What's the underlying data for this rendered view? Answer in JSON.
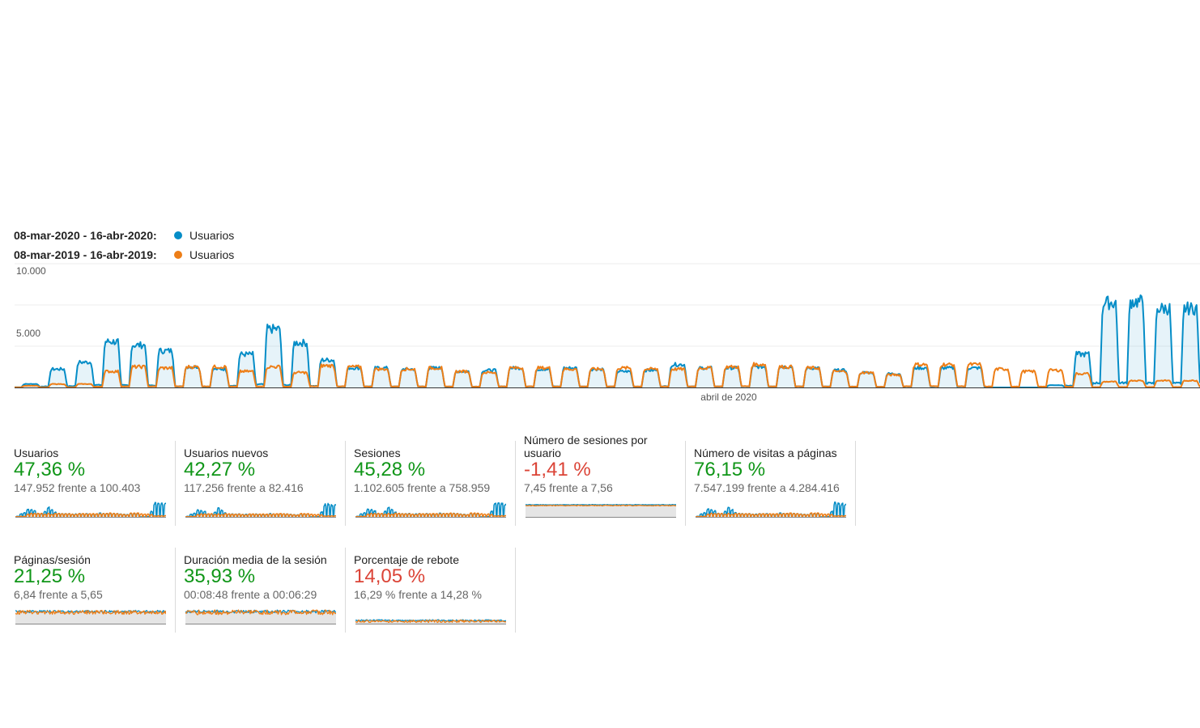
{
  "legend": {
    "rows": [
      {
        "date_range": "08-mar-2020 - 16-abr-2020:",
        "metric": "Usuarios",
        "color": "#058dc7"
      },
      {
        "date_range": "08-mar-2019 - 16-abr-2019:",
        "metric": "Usuarios",
        "color": "#ed7e17"
      }
    ]
  },
  "chart_data": {
    "type": "line",
    "y_ticks": [
      "10.000",
      "5.000"
    ],
    "ylim": [
      0,
      10000
    ],
    "x_tick_label": "abril de 2020",
    "series": [
      {
        "name": "08-mar-2020 - 16-abr-2020: Usuarios",
        "color": "#058dc7"
      },
      {
        "name": "08-mar-2019 - 16-abr-2019: Usuarios",
        "color": "#ed7e17"
      }
    ],
    "daily_peaks_current": [
      300,
      1600,
      2200,
      4000,
      3700,
      3200,
      1800,
      1600,
      2900,
      5100,
      3900,
      2400,
      1700,
      1700,
      1600,
      1700,
      1400,
      1500,
      1700,
      1600,
      1700,
      1600,
      1400,
      1500,
      2000,
      1700,
      1700,
      1800,
      1800,
      1700,
      1500,
      1300,
      1200,
      1700,
      1700,
      1700,
      0,
      0,
      200,
      2900,
      7400,
      7500,
      6900,
      6900
    ],
    "daily_peaks_previous": [
      150,
      300,
      300,
      1400,
      1800,
      1700,
      1800,
      1800,
      1400,
      1800,
      1300,
      1900,
      1800,
      1600,
      1600,
      1700,
      1400,
      1300,
      1700,
      1700,
      1600,
      1600,
      1700,
      1600,
      1600,
      1700,
      1800,
      2000,
      1800,
      1700,
      1400,
      1300,
      1100,
      2000,
      2000,
      2000,
      1600,
      1400,
      1500,
      1200,
      500,
      600,
      600,
      600
    ]
  },
  "metrics": [
    {
      "title": "Usuarios",
      "change": "47,36 %",
      "status": "good",
      "detail": "147.952 frente a 100.403"
    },
    {
      "title": "Usuarios nuevos",
      "change": "42,27 %",
      "status": "good",
      "detail": "117.256 frente a 82.416"
    },
    {
      "title": "Sesiones",
      "change": "45,28 %",
      "status": "good",
      "detail": "1.102.605 frente a 758.959"
    },
    {
      "title": "Número de sesiones por usuario",
      "change": "-1,41 %",
      "status": "bad",
      "detail": "7,45 frente a 7,56"
    },
    {
      "title": "Número de visitas a páginas",
      "change": "76,15 %",
      "status": "good",
      "detail": "7.547.199 frente a 4.284.416"
    },
    {
      "title": "Páginas/sesión",
      "change": "21,25 %",
      "status": "good",
      "detail": "6,84 frente a 5,65"
    },
    {
      "title": "Duración media de la sesión",
      "change": "35,93 %",
      "status": "good",
      "detail": "00:08:48 frente a 00:06:29"
    },
    {
      "title": "Porcentaje de rebote",
      "change": "14,05 %",
      "status": "bad",
      "detail": "16,29 % frente a 14,28 %"
    }
  ],
  "colors": {
    "current": "#058dc7",
    "previous": "#ed7e17",
    "good": "#109618",
    "bad": "#db4437"
  }
}
